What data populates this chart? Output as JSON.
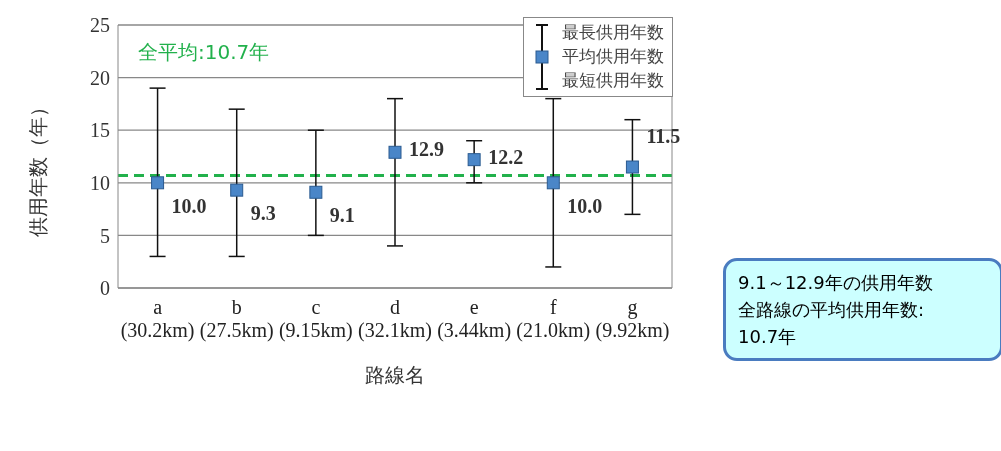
{
  "chart_data": {
    "type": "scatter",
    "xlabel": "路線名",
    "ylabel": "供用年数（年）",
    "categories": [
      "a\n(30.2km)",
      "b\n(27.5km)",
      "c\n(9.15km)",
      "d\n(32.1km)",
      "e\n(3.44km)",
      "f\n(21.0km)",
      "g\n(9.92km)"
    ],
    "series": [
      {
        "name": "平均供用年数",
        "color": "#4a86c8",
        "values": [
          10.0,
          9.3,
          9.1,
          12.9,
          12.2,
          10.0,
          11.5
        ],
        "value_labels": [
          "10.0",
          "9.3",
          "9.1",
          "12.9",
          "12.2",
          "10.0",
          "11.5"
        ],
        "errors": [
          [
            3,
            19
          ],
          [
            3,
            17
          ],
          [
            5,
            15
          ],
          [
            4,
            18
          ],
          [
            10,
            14
          ],
          [
            2,
            18
          ],
          [
            7,
            16
          ]
        ]
      }
    ],
    "marker": "square",
    "ylim": [
      0,
      25
    ],
    "yticks": [
      0,
      5,
      10,
      15,
      20,
      25
    ],
    "grid": "y",
    "legend": "top right",
    "ref_lines": [
      {
        "axis": "y",
        "value": 10.7,
        "label": "全平均:10.7年",
        "color": "#22b14c",
        "line_style": "dashed"
      }
    ],
    "annotations": [
      "最長供用年数",
      "最短供用年数",
      "9.1～12.9年の供用年数",
      "全路線の平均供用年数:",
      "10.7年"
    ]
  }
}
